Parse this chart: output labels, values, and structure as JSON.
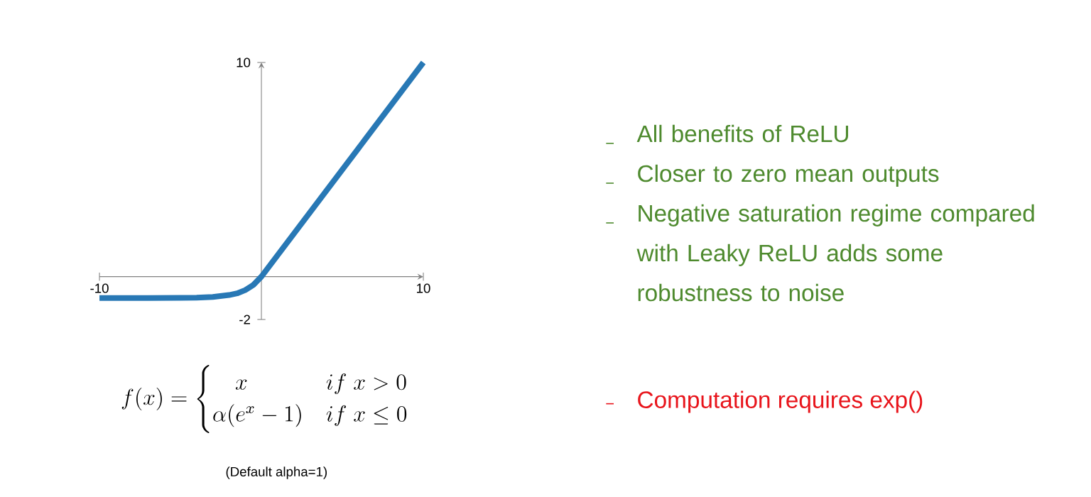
{
  "chart_data": {
    "type": "line",
    "xlim": [
      -10,
      10
    ],
    "ylim": [
      -2,
      10
    ],
    "xticks": [
      -10,
      10
    ],
    "yticks": [
      -2,
      10
    ],
    "marker": "none",
    "line_style": "solid",
    "series": [
      {
        "color": "#2878b5",
        "x": [
          -10,
          -7,
          -5,
          -4,
          -3,
          -2,
          -1.5,
          -1,
          -0.5,
          0,
          10
        ],
        "values": [
          -1,
          -1,
          -0.99,
          -0.98,
          -0.95,
          -0.86,
          -0.78,
          -0.63,
          -0.39,
          0,
          10
        ]
      }
    ],
    "annotations": [
      "All benefits of ReLU",
      "Closer to zero mean outputs",
      "Negative saturation regime compared with Leaky ReLU adds some robustness to noise",
      "Computation requires exp()",
      "f(x) = \\begin{cases} \\quad x & if\\ x > 0 \\\\ \\alpha(e^{x}-1) & if\\ x \\le 0 \\end{cases}",
      "(Default alpha=1)"
    ]
  }
}
